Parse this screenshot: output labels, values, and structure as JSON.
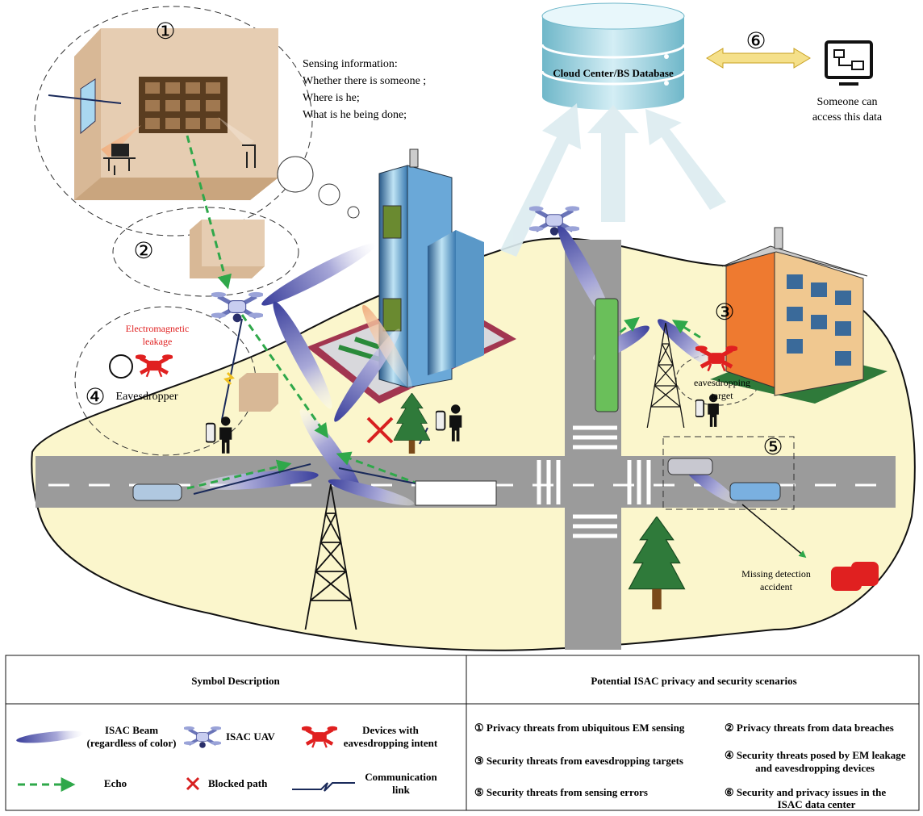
{
  "scene": {
    "markers": [
      "①",
      "②",
      "③",
      "④",
      "⑤",
      "⑥"
    ],
    "sensing_info": [
      "Sensing information:",
      "Whether there is someone ;",
      "Where is he;",
      "What is he being done;"
    ],
    "database_label": "Cloud Center/BS Database",
    "access_note": [
      "Someone can",
      "access this data"
    ],
    "leakage_label": [
      "Electromagnetic",
      "leakage"
    ],
    "eavesdropper_label": "Eavesdropper",
    "target_label": [
      "eavesdropping",
      "target"
    ],
    "accident_label": [
      "Missing detection",
      "accident"
    ]
  },
  "table": {
    "headers": [
      "Symbol Description",
      "Potential ISAC privacy and security scenarios"
    ],
    "symbols": [
      [
        "ISAC Beam",
        "(regardless of color)"
      ],
      [
        "ISAC UAV"
      ],
      [
        "Devices with",
        "eavesdropping intent"
      ],
      [
        "Echo"
      ],
      [
        "Blocked path"
      ],
      [
        "Communication",
        "link"
      ]
    ],
    "scenarios": [
      [
        "① Privacy threats from ubiquitous EM sensing"
      ],
      [
        "② Privacy threats from data breaches"
      ],
      [
        "③ Security threats from eavesdropping targets"
      ],
      [
        "④ Security threats posed by EM leakage",
        "and eavesdropping devices"
      ],
      [
        "⑤ Security threats from sensing errors"
      ],
      [
        "⑥ Security and privacy issues in the",
        "ISAC data center"
      ]
    ]
  }
}
